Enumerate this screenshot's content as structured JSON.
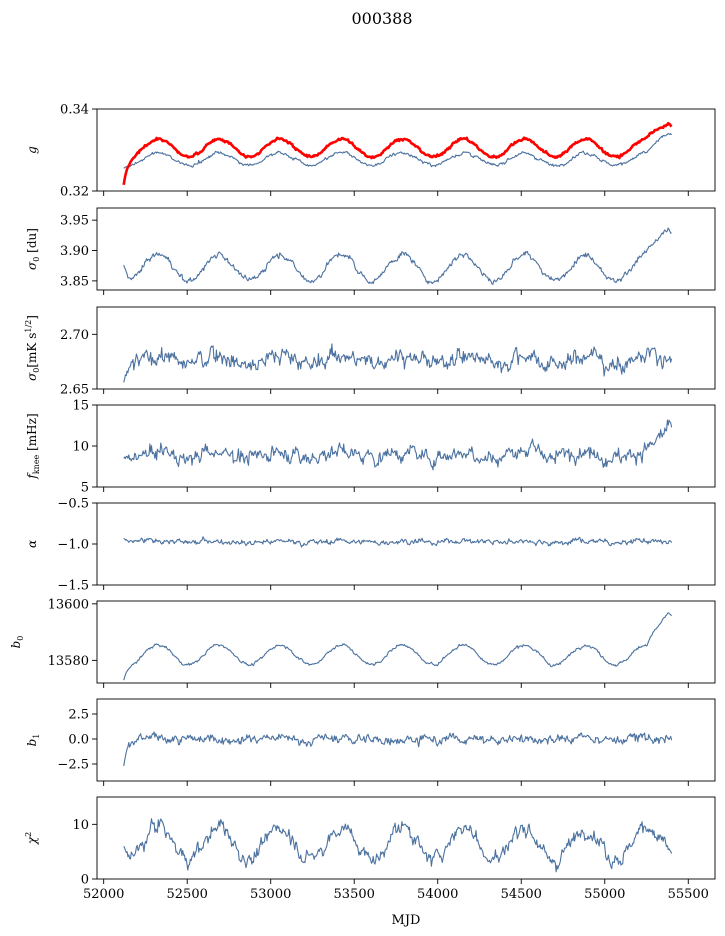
{
  "figure": {
    "title": "000388",
    "xlabel": "MJD",
    "xlim": [
      51960,
      55660
    ],
    "xticks": [
      52000,
      52500,
      53000,
      53500,
      54000,
      54500,
      55000,
      55500
    ],
    "xtick_labels": [
      "52000",
      "52500",
      "53000",
      "53500",
      "54000",
      "54500",
      "55000",
      "55500"
    ],
    "series_color": "#4c72a0",
    "highlight_color": "#ff0000"
  },
  "chart_data": [
    {
      "type": "line",
      "id": "g",
      "ylabel": "g",
      "ylim": [
        0.32,
        0.34
      ],
      "yticks": [
        0.32,
        0.34
      ],
      "ytick_labels": [
        "0.32",
        "0.34"
      ],
      "x_range": [
        52120,
        55400
      ],
      "series": [
        {
          "name": "g (blue)",
          "color": "#4c72a0",
          "base": 0.3278,
          "seasonal_amp": 0.0015,
          "noise": 0.0005,
          "start": 0.3255
        },
        {
          "name": "g (red)",
          "color": "#ff0000",
          "base": 0.3305,
          "seasonal_amp": 0.0022,
          "noise": 0.0004,
          "start": 0.3215
        }
      ],
      "end_rise": 0.0072
    },
    {
      "type": "line",
      "id": "sigma-du",
      "ylabel": "σ0 [du]",
      "ylim": [
        3.835,
        3.97
      ],
      "yticks": [
        3.85,
        3.9,
        3.95
      ],
      "ytick_labels": [
        "3.85",
        "3.90",
        "3.95"
      ],
      "x_range": [
        52120,
        55400
      ],
      "base": 3.872,
      "seasonal_amp": 0.022,
      "noise": 0.006,
      "start": 3.876,
      "end_rise": 0.075
    },
    {
      "type": "line",
      "id": "sigma-mk",
      "ylabel": "σ0[mK s^1/2]",
      "ylim": [
        2.65,
        2.725
      ],
      "yticks": [
        2.65,
        2.7
      ],
      "ytick_labels": [
        "2.65",
        "2.70"
      ],
      "x_range": [
        52120,
        55400
      ],
      "base": 2.677,
      "seasonal_amp": 0.004,
      "noise": 0.009,
      "start": 2.656,
      "end_rise": 0.0
    },
    {
      "type": "line",
      "id": "fknee",
      "ylabel": "fknee [mHz]",
      "ylim": [
        5,
        15
      ],
      "yticks": [
        5,
        10,
        15
      ],
      "ytick_labels": [
        "5",
        "10",
        "15"
      ],
      "x_range": [
        52120,
        55400
      ],
      "base": 9.0,
      "seasonal_amp": 0.4,
      "noise": 1.1,
      "start": 8.5,
      "end_rise": 3.3
    },
    {
      "type": "line",
      "id": "alpha",
      "ylabel": "α",
      "ylim": [
        -1.5,
        -0.5
      ],
      "yticks": [
        -1.5,
        -1.0,
        -0.5
      ],
      "ytick_labels": [
        "−1.5",
        "−1.0",
        "−0.5"
      ],
      "x_range": [
        52120,
        55400
      ],
      "base": -0.97,
      "seasonal_amp": 0.01,
      "noise": 0.04,
      "start": -0.93,
      "end_rise": 0.0
    },
    {
      "type": "line",
      "id": "b0",
      "ylabel": "b0",
      "ylim": [
        13572,
        13601
      ],
      "yticks": [
        13580,
        13600
      ],
      "ytick_labels": [
        "13580",
        "13600"
      ],
      "x_range": [
        52120,
        55400
      ],
      "base": 13582,
      "seasonal_amp": 3.5,
      "noise": 0.6,
      "start": 13573,
      "end_rise": 17
    },
    {
      "type": "line",
      "id": "b1",
      "ylabel": "b1",
      "ylim": [
        -4.2,
        4.0
      ],
      "yticks": [
        -2.5,
        0.0,
        2.5
      ],
      "ytick_labels": [
        "−2.5",
        "0.0",
        "2.5"
      ],
      "x_range": [
        52120,
        55400
      ],
      "base": 0.0,
      "seasonal_amp": 0.1,
      "noise": 0.55,
      "start": -2.7,
      "end_rise": 0.0
    },
    {
      "type": "line",
      "id": "chi2",
      "ylabel": "χ2",
      "ylim": [
        0,
        15
      ],
      "yticks": [
        0,
        10
      ],
      "ytick_labels": [
        "0",
        "10"
      ],
      "x_range": [
        52120,
        55400
      ],
      "base": 6.5,
      "seasonal_amp": 3.0,
      "noise": 1.6,
      "start": 6.0,
      "end_rise": 1.0
    }
  ]
}
